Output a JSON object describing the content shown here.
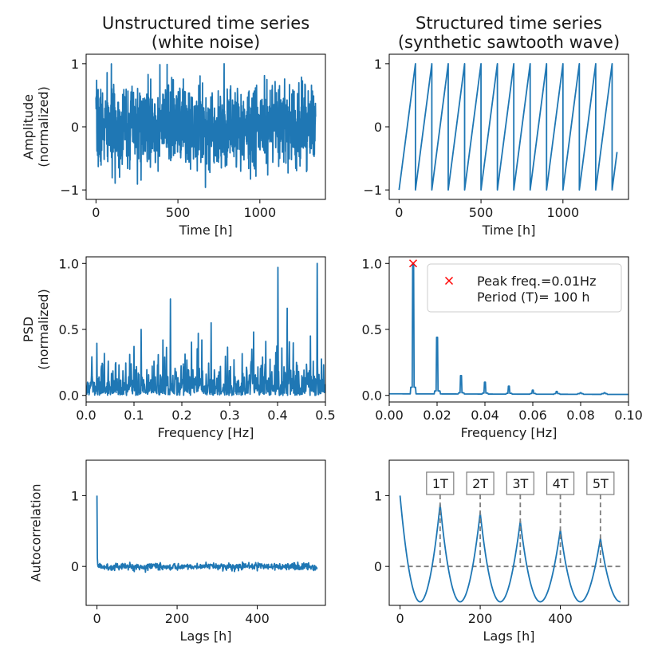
{
  "chart_data": [
    {
      "id": "noise-ts",
      "type": "line",
      "title": [
        "Unstructured time series",
        "(white noise)"
      ],
      "xlabel": "Time [h]",
      "ylabel": [
        "Amplitude",
        "(normalized)"
      ],
      "xlim": [
        -60,
        1400
      ],
      "ylim": [
        -1.15,
        1.15
      ],
      "xticks": [
        0,
        500,
        1000
      ],
      "yticks": [
        -1,
        0,
        1
      ],
      "color": "#1f77b4",
      "series": [
        {
          "kind": "noise",
          "x_start": 0,
          "x_end": 1340,
          "n": 1341,
          "amplitude_range": [
            -1.1,
            1.05
          ],
          "seed": 7
        }
      ]
    },
    {
      "id": "saw-ts",
      "type": "line",
      "title": [
        "Structured time series",
        "(synthetic sawtooth wave)"
      ],
      "xlabel": "Time [h]",
      "ylabel": [],
      "xlim": [
        -60,
        1400
      ],
      "ylim": [
        -1.15,
        1.15
      ],
      "xticks": [
        0,
        500,
        1000
      ],
      "yticks": [
        -1,
        0,
        1
      ],
      "color": "#1f77b4",
      "series": [
        {
          "kind": "sawtooth",
          "period": 100,
          "x_end": 1330,
          "y_range": [
            -1,
            1
          ]
        }
      ]
    },
    {
      "id": "noise-psd",
      "type": "line",
      "xlabel": "Frequency [Hz]",
      "ylabel": [
        "PSD",
        "(normalized)"
      ],
      "xlim": [
        0,
        0.5
      ],
      "ylim": [
        -0.05,
        1.05
      ],
      "xticks": [
        0.0,
        0.1,
        0.2,
        0.3,
        0.4,
        0.5
      ],
      "xtick_labels": [
        "0.0",
        "0.1",
        "0.2",
        "0.3",
        "0.4",
        "0.5"
      ],
      "yticks": [
        0.0,
        0.5,
        1.0
      ],
      "ytick_labels": [
        "0.0",
        "0.5",
        "1.0"
      ],
      "color": "#1f77b4",
      "series": [
        {
          "kind": "noise-psd",
          "n": 671,
          "seed": 11,
          "spikes": [
            [
              0.176,
              0.73
            ],
            [
              0.401,
              0.97
            ],
            [
              0.483,
              1.0
            ],
            [
              0.42,
              0.66
            ],
            [
              0.469,
              0.45
            ],
            [
              0.261,
              0.55
            ],
            [
              0.115,
              0.5
            ],
            [
              0.35,
              0.48
            ],
            [
              0.234,
              0.47
            ]
          ]
        }
      ]
    },
    {
      "id": "saw-psd",
      "type": "line",
      "xlabel": "Frequency [Hz]",
      "ylabel": [],
      "xlim": [
        0,
        0.1
      ],
      "ylim": [
        -0.05,
        1.05
      ],
      "xticks": [
        0.0,
        0.02,
        0.04,
        0.06,
        0.08,
        0.1
      ],
      "xtick_labels": [
        "0.00",
        "0.02",
        "0.04",
        "0.06",
        "0.08",
        "0.10"
      ],
      "yticks": [
        0.0,
        0.5,
        1.0
      ],
      "ytick_labels": [
        "0.0",
        "0.5",
        "1.0"
      ],
      "color": "#1f77b4",
      "series": [
        {
          "kind": "harmonic-psd",
          "fundamental": 0.01,
          "harmonics": [
            1.0,
            0.44,
            0.15,
            0.1,
            0.07,
            0.04,
            0.03,
            0.02,
            0.02
          ]
        }
      ],
      "peak_marker": {
        "x": 0.01,
        "y": 1.0,
        "color": "#ff0000"
      },
      "legend": {
        "lines": [
          "Peak freq.=0.01Hz",
          "Period (T)= 100 h"
        ],
        "placement": "upper right"
      }
    },
    {
      "id": "noise-acf",
      "type": "line",
      "xlabel": "Lags [h]",
      "ylabel": [
        "Autocorrelation"
      ],
      "xlim": [
        -27,
        570
      ],
      "ylim": [
        -0.55,
        1.5
      ],
      "xticks": [
        0,
        200,
        400
      ],
      "yticks": [
        0,
        1
      ],
      "color": "#1f77b4",
      "series": [
        {
          "kind": "noise-acf",
          "x_end": 550,
          "seed": 5
        }
      ]
    },
    {
      "id": "saw-acf",
      "type": "line",
      "xlabel": "Lags [h]",
      "ylabel": [],
      "xlim": [
        -27,
        570
      ],
      "ylim": [
        -0.55,
        1.5
      ],
      "xticks": [
        0,
        200,
        400
      ],
      "yticks": [
        0,
        1
      ],
      "color": "#1f77b4",
      "series": [
        {
          "kind": "sawtooth-acf",
          "period": 100,
          "x_end": 550
        }
      ],
      "zero_line": true,
      "period_markers": [
        {
          "label": "1T",
          "lag": 100
        },
        {
          "label": "2T",
          "lag": 200
        },
        {
          "label": "3T",
          "lag": 300
        },
        {
          "label": "4T",
          "lag": 400
        },
        {
          "label": "5T",
          "lag": 500
        }
      ]
    }
  ]
}
